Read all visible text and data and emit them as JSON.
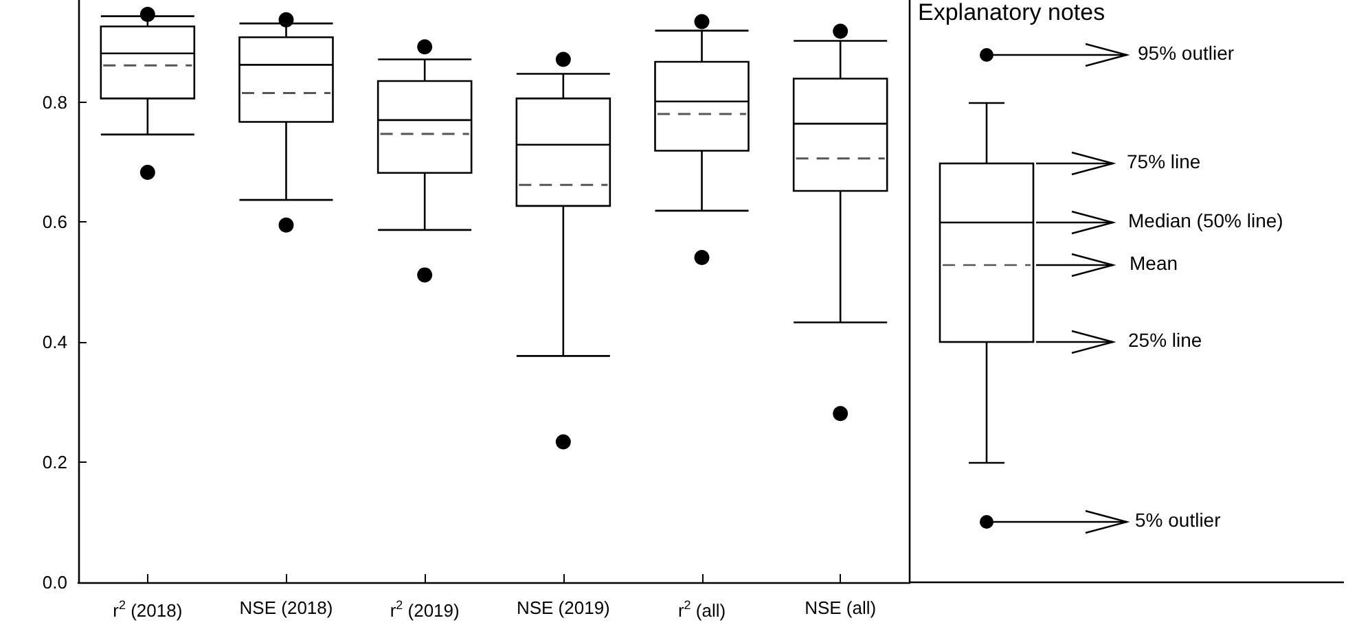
{
  "chart_data": {
    "type": "box",
    "categories": [
      "r$^{2}$ (2018)",
      "NSE (2018)",
      "r$^{2}$ (2019)",
      "NSE (2019)",
      "r$^{2}$ (all)",
      "NSE (all)"
    ],
    "boxes": [
      {
        "low": 0.746,
        "q1": 0.806,
        "median": 0.881,
        "q3": 0.926,
        "high": 0.943,
        "mean": 0.861,
        "outliers": [
          0.683,
          0.946
        ]
      },
      {
        "low": 0.637,
        "q1": 0.767,
        "median": 0.862,
        "q3": 0.908,
        "high": 0.931,
        "mean": 0.815,
        "outliers": [
          0.595,
          0.937
        ]
      },
      {
        "low": 0.587,
        "q1": 0.682,
        "median": 0.77,
        "q3": 0.835,
        "high": 0.871,
        "mean": 0.747,
        "outliers": [
          0.512,
          0.892
        ]
      },
      {
        "low": 0.377,
        "q1": 0.627,
        "median": 0.729,
        "q3": 0.806,
        "high": 0.847,
        "mean": 0.662,
        "outliers": [
          0.234,
          0.871
        ]
      },
      {
        "low": 0.619,
        "q1": 0.719,
        "median": 0.801,
        "q3": 0.867,
        "high": 0.919,
        "mean": 0.78,
        "outliers": [
          0.541,
          0.934
        ]
      },
      {
        "low": 0.433,
        "q1": 0.652,
        "median": 0.764,
        "q3": 0.839,
        "high": 0.902,
        "mean": 0.706,
        "outliers": [
          0.281,
          0.918
        ]
      }
    ],
    "color": "#000000",
    "ylim": [
      0,
      0.97
    ],
    "yticks": [
      {
        "value": 0,
        "label": "0.0"
      },
      0.2,
      0.4,
      0.6,
      0.8
    ],
    "grid": false,
    "annotations": [
      "Explanatory notes",
      "95% outlier",
      "75% line",
      "Median (50% line)",
      "Mean",
      "25% line",
      "5% outlier"
    ]
  }
}
